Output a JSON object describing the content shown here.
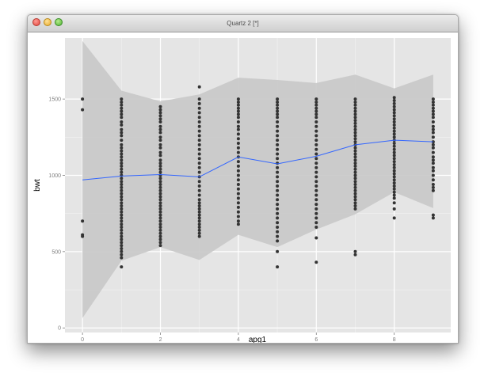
{
  "window": {
    "title": "Quartz 2 [*]",
    "buttons": [
      "close",
      "minimize",
      "zoom"
    ]
  },
  "chart_data": {
    "type": "scatter",
    "title": "",
    "xlabel": "apg1",
    "ylabel": "bwt",
    "xlim": [
      -0.45,
      9.45
    ],
    "ylim": [
      -30,
      1900
    ],
    "x_ticks": [
      0,
      2,
      4,
      6,
      8
    ],
    "x_ticklabels": [
      "0",
      "2",
      "4",
      "6",
      "8"
    ],
    "y_ticks": [
      0,
      500,
      1000,
      1500
    ],
    "y_ticklabels": [
      "0",
      "500",
      "1000",
      "1500"
    ],
    "grid": true,
    "colors": {
      "panel": "#e5e5e5",
      "band": "#c8c8c8",
      "points": "#333333",
      "line": "#3366ff"
    },
    "points_by_x": [
      {
        "x": 0,
        "y": [
          1500,
          1430,
          700,
          610,
          600
        ]
      },
      {
        "x": 1,
        "y": [
          1500,
          1480,
          1460,
          1440,
          1420,
          1400,
          1380,
          1350,
          1330,
          1300,
          1280,
          1260,
          1230,
          1200,
          1180,
          1160,
          1140,
          1120,
          1100,
          1080,
          1060,
          1040,
          1020,
          1000,
          980,
          960,
          940,
          920,
          900,
          880,
          860,
          840,
          820,
          800,
          780,
          760,
          740,
          720,
          700,
          680,
          660,
          640,
          620,
          600,
          580,
          560,
          540,
          520,
          500,
          480,
          460,
          400
        ]
      },
      {
        "x": 2,
        "y": [
          1450,
          1430,
          1410,
          1390,
          1370,
          1350,
          1320,
          1300,
          1280,
          1250,
          1230,
          1200,
          1180,
          1150,
          1130,
          1100,
          1080,
          1060,
          1040,
          1020,
          1000,
          980,
          960,
          940,
          920,
          900,
          880,
          860,
          840,
          820,
          800,
          780,
          760,
          740,
          720,
          700,
          680,
          660,
          640,
          620,
          600,
          580,
          560,
          540
        ]
      },
      {
        "x": 3,
        "y": [
          1580,
          1500,
          1470,
          1440,
          1410,
          1380,
          1350,
          1320,
          1290,
          1260,
          1230,
          1200,
          1170,
          1140,
          1110,
          1080,
          1050,
          1020,
          990,
          960,
          930,
          900,
          870,
          840,
          820,
          800,
          780,
          760,
          740,
          720,
          700,
          680,
          660,
          640,
          620,
          600
        ]
      },
      {
        "x": 4,
        "y": [
          1500,
          1480,
          1460,
          1440,
          1420,
          1400,
          1380,
          1350,
          1320,
          1300,
          1270,
          1240,
          1210,
          1180,
          1150,
          1120,
          1090,
          1060,
          1030,
          1000,
          970,
          940,
          910,
          880,
          850,
          820,
          790,
          760,
          730,
          700,
          680
        ]
      },
      {
        "x": 5,
        "y": [
          1500,
          1480,
          1460,
          1440,
          1420,
          1400,
          1380,
          1350,
          1320,
          1290,
          1260,
          1230,
          1200,
          1170,
          1140,
          1110,
          1080,
          1050,
          1020,
          990,
          960,
          930,
          900,
          870,
          840,
          810,
          780,
          750,
          720,
          690,
          660,
          630,
          600,
          570,
          500,
          400
        ]
      },
      {
        "x": 6,
        "y": [
          1500,
          1480,
          1460,
          1440,
          1420,
          1400,
          1380,
          1350,
          1320,
          1290,
          1260,
          1230,
          1200,
          1170,
          1140,
          1110,
          1080,
          1050,
          1020,
          990,
          960,
          930,
          900,
          870,
          840,
          810,
          780,
          750,
          720,
          690,
          660,
          590,
          430
        ]
      },
      {
        "x": 7,
        "y": [
          1500,
          1480,
          1460,
          1440,
          1420,
          1400,
          1380,
          1360,
          1340,
          1320,
          1300,
          1280,
          1260,
          1240,
          1220,
          1200,
          1180,
          1160,
          1140,
          1120,
          1100,
          1080,
          1060,
          1040,
          1020,
          1000,
          980,
          960,
          940,
          920,
          900,
          880,
          860,
          840,
          820,
          800,
          780,
          500,
          480
        ]
      },
      {
        "x": 8,
        "y": [
          1510,
          1490,
          1470,
          1450,
          1430,
          1410,
          1390,
          1370,
          1350,
          1330,
          1310,
          1290,
          1270,
          1250,
          1230,
          1210,
          1190,
          1170,
          1150,
          1130,
          1110,
          1090,
          1070,
          1050,
          1030,
          1010,
          990,
          970,
          950,
          930,
          910,
          890,
          870,
          850,
          820,
          780,
          720
        ]
      },
      {
        "x": 9,
        "y": [
          1500,
          1480,
          1460,
          1440,
          1420,
          1400,
          1380,
          1350,
          1320,
          1300,
          1280,
          1250,
          1220,
          1200,
          1180,
          1150,
          1120,
          1100,
          1080,
          1050,
          1030,
          1000,
          970,
          940,
          920,
          900,
          740,
          720
        ]
      }
    ],
    "smooth_line": {
      "x": [
        0,
        1,
        2,
        3,
        4,
        5,
        6,
        7,
        8,
        9
      ],
      "y": [
        970,
        995,
        1005,
        990,
        1120,
        1075,
        1125,
        1200,
        1230,
        1220
      ]
    },
    "confidence_band": {
      "x": [
        0,
        1,
        2,
        3,
        4,
        5,
        6,
        7,
        8,
        9
      ],
      "upper": [
        1880,
        1555,
        1485,
        1530,
        1640,
        1625,
        1605,
        1660,
        1570,
        1660
      ],
      "lower": [
        65,
        440,
        530,
        445,
        610,
        530,
        645,
        745,
        890,
        785
      ]
    }
  }
}
